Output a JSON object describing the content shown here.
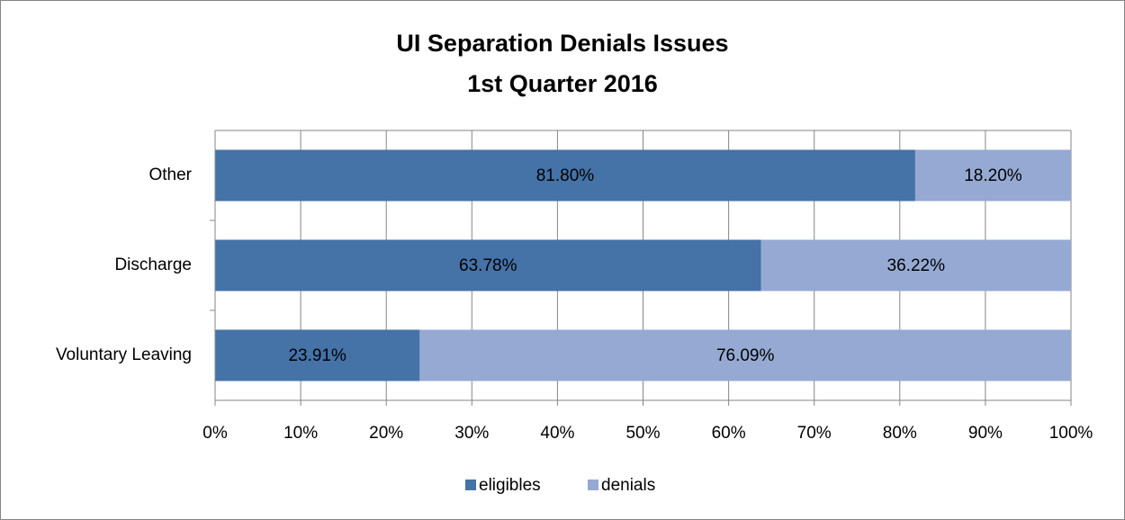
{
  "chart_data": {
    "type": "stacked-barh",
    "title": "UI Separation Denials Issues",
    "subtitle": "1st Quarter 2016",
    "categories": [
      "Other",
      "Discharge",
      "Voluntary Leaving"
    ],
    "series": [
      {
        "name": "eligibles",
        "color": "#4572a7",
        "values": [
          81.8,
          63.78,
          23.91
        ],
        "value_labels": [
          "81.80%",
          "63.78%",
          "23.91%"
        ]
      },
      {
        "name": "denials",
        "color": "#95a9d3",
        "values": [
          18.2,
          36.22,
          76.09
        ],
        "value_labels": [
          "18.20%",
          "36.22%",
          "76.09%"
        ]
      }
    ],
    "xlim": [
      0,
      100
    ],
    "xticks": [
      {
        "value": 0,
        "label": "0%"
      },
      {
        "value": 10,
        "label": "10%"
      },
      {
        "value": 20,
        "label": "20%"
      },
      {
        "value": 30,
        "label": "30%"
      },
      {
        "value": 40,
        "label": "40%"
      },
      {
        "value": 50,
        "label": "50%"
      },
      {
        "value": 60,
        "label": "60%"
      },
      {
        "value": 70,
        "label": "70%"
      },
      {
        "value": 80,
        "label": "80%"
      },
      {
        "value": 90,
        "label": "90%"
      },
      {
        "value": 100,
        "label": "100%"
      }
    ],
    "grid": true,
    "legend": "bottom"
  }
}
